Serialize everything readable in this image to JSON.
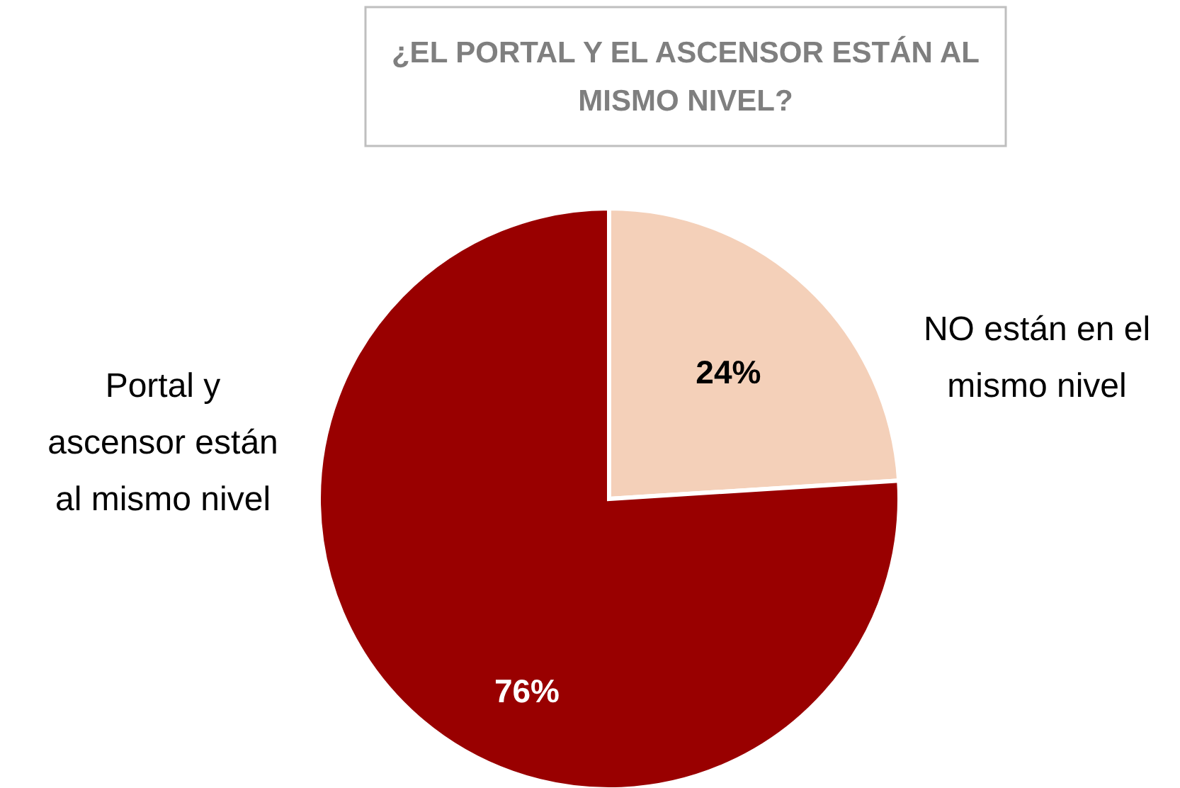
{
  "chart_data": {
    "type": "pie",
    "title": "¿EL PORTAL Y EL ASCENSOR ESTÁN AL MISMO NIVEL?",
    "categories": [
      "NO están en el mismo nivel",
      "Portal y ascensor están al mismo nivel"
    ],
    "values": [
      24,
      76
    ],
    "colors": [
      "#f4d0b9",
      "#990000"
    ],
    "value_labels": [
      "24%",
      "76%"
    ]
  }
}
